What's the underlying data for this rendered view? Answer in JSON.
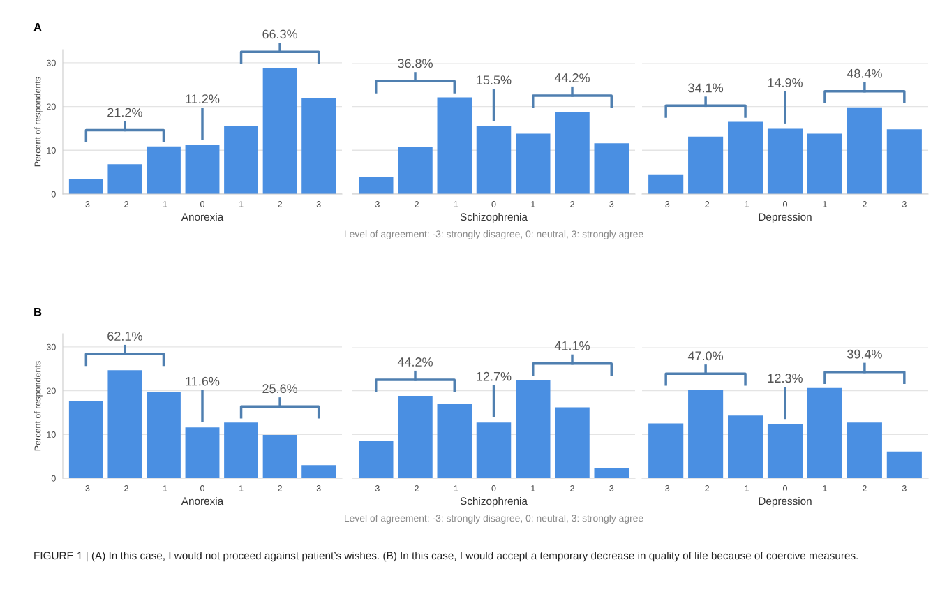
{
  "chart_data": [
    {
      "type": "bar",
      "title": "A",
      "xlabel": "Anorexia",
      "ylabel": "Percent of respondents",
      "categories": [
        "-3",
        "-2",
        "-1",
        "0",
        "1",
        "2",
        "3"
      ],
      "color": "#4a8fe2",
      "values": [
        3.5,
        6.8,
        10.9,
        11.2,
        15.5,
        28.8,
        22.0
      ],
      "ylim": [
        0,
        33
      ],
      "yticks": [
        0,
        10,
        20,
        30
      ],
      "grid": "y",
      "annotations": [
        "21.2%",
        "11.2%",
        "66.3%"
      ]
    },
    {
      "type": "bar",
      "xlabel": "Schizophrenia",
      "categories": [
        "-3",
        "-2",
        "-1",
        "0",
        "1",
        "2",
        "3"
      ],
      "color": "#4a8fe2",
      "values": [
        3.9,
        10.8,
        22.1,
        15.5,
        13.8,
        18.8,
        11.6
      ],
      "ylim": [
        0,
        30
      ],
      "yticks": [
        0,
        10,
        20,
        30
      ],
      "grid": "y",
      "tick_labels": "x",
      "annotations": [
        "36.8%",
        "15.5%",
        "44.2%",
        "Level of agreement: -3: strongly disagree, 0: neutral, 3: strongly agree"
      ]
    },
    {
      "type": "bar",
      "xlabel": "Depression",
      "categories": [
        "-3",
        "-2",
        "-1",
        "0",
        "1",
        "2",
        "3"
      ],
      "color": "#4a8fe2",
      "values": [
        4.5,
        13.1,
        16.5,
        14.9,
        13.8,
        19.8,
        14.8
      ],
      "ylim": [
        0,
        30
      ],
      "yticks": [
        0,
        10,
        20,
        30
      ],
      "grid": "y",
      "tick_labels": "x",
      "annotations": [
        "34.1%",
        "14.9%",
        "48.4%"
      ]
    },
    {
      "type": "bar",
      "title": "B",
      "xlabel": "Anorexia",
      "ylabel": "Percent of respondents",
      "categories": [
        "-3",
        "-2",
        "-1",
        "0",
        "1",
        "2",
        "3"
      ],
      "color": "#4a8fe2",
      "values": [
        17.7,
        24.7,
        19.7,
        11.6,
        12.7,
        9.9,
        3.0
      ],
      "ylim": [
        0,
        33
      ],
      "yticks": [
        0,
        10,
        20,
        30
      ],
      "grid": "y",
      "annotations": [
        "62.1%",
        "11.6%",
        "25.6%"
      ]
    },
    {
      "type": "bar",
      "xlabel": "Schizophrenia",
      "categories": [
        "-3",
        "-2",
        "-1",
        "0",
        "1",
        "2",
        "3"
      ],
      "color": "#4a8fe2",
      "values": [
        8.5,
        18.8,
        16.9,
        12.7,
        22.5,
        16.2,
        2.4
      ],
      "ylim": [
        0,
        30
      ],
      "yticks": [
        0,
        10,
        20,
        30
      ],
      "grid": "y",
      "tick_labels": "x",
      "annotations": [
        "44.2%",
        "12.7%",
        "41.1%",
        "Level of agreement: -3: strongly disagree, 0: neutral, 3: strongly agree"
      ]
    },
    {
      "type": "bar",
      "xlabel": "Depression",
      "categories": [
        "-3",
        "-2",
        "-1",
        "0",
        "1",
        "2",
        "3"
      ],
      "color": "#4a8fe2",
      "values": [
        12.5,
        20.2,
        14.3,
        12.3,
        20.6,
        12.7,
        6.1
      ],
      "ylim": [
        0,
        30
      ],
      "yticks": [
        0,
        10,
        20,
        30
      ],
      "grid": "y",
      "tick_labels": "x",
      "annotations": [
        "47.0%",
        "12.3%",
        "39.4%",
        "FIGURE 1 | (A) In this case, I would not proceed against patient’s wishes. (B) In this case, I would accept a temporary decrease in quality of life because of coercive measures."
      ]
    }
  ]
}
